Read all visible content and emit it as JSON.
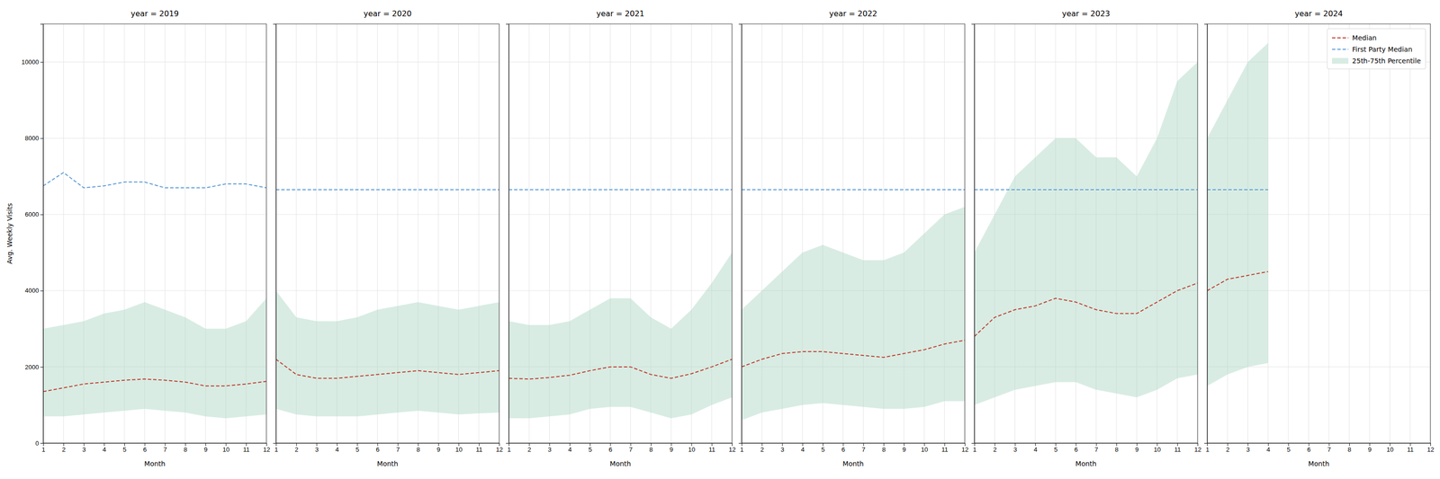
{
  "chart_data": [
    {
      "type": "line",
      "title": "year = 2019",
      "x_label": "Month",
      "y_label": "Avg. Weekly Visits",
      "x": [
        1,
        2,
        3,
        4,
        5,
        6,
        7,
        8,
        9,
        10,
        11,
        12
      ],
      "xlim": [
        1,
        12
      ],
      "xticks": [
        1,
        2,
        3,
        4,
        5,
        6,
        7,
        8,
        9,
        10,
        11,
        12
      ],
      "ylim": [
        0,
        11000
      ],
      "yticks": [
        0,
        2000,
        4000,
        6000,
        8000,
        10000
      ],
      "grid": true,
      "series": [
        {
          "name": "Median",
          "color": "#c0392b",
          "line_style": "dashed",
          "values": [
            1350,
            1450,
            1550,
            1600,
            1650,
            1680,
            1650,
            1600,
            1500,
            1500,
            1550,
            1620
          ]
        },
        {
          "name": "First Party Median",
          "color": "#5b9bd5",
          "line_style": "dashed",
          "values": [
            6750,
            7100,
            6700,
            6750,
            6850,
            6850,
            6700,
            6700,
            6700,
            6800,
            6800,
            6700
          ]
        },
        {
          "name": "25th-75th Percentile",
          "type": "band",
          "color": "#a8d5c2",
          "low": [
            700,
            700,
            750,
            800,
            850,
            900,
            850,
            800,
            700,
            650,
            700,
            750
          ],
          "high": [
            3000,
            3100,
            3200,
            3400,
            3500,
            3700,
            3500,
            3300,
            3000,
            3000,
            3200,
            3800
          ]
        }
      ]
    },
    {
      "type": "line",
      "title": "year = 2020",
      "x_label": "Month",
      "x": [
        1,
        2,
        3,
        4,
        5,
        6,
        7,
        8,
        9,
        10,
        11,
        12
      ],
      "xlim": [
        1,
        12
      ],
      "xticks": [
        1,
        2,
        3,
        4,
        5,
        6,
        7,
        8,
        9,
        10,
        11,
        12
      ],
      "ylim": [
        0,
        11000
      ],
      "yticks": [
        0,
        2000,
        4000,
        6000,
        8000,
        10000
      ],
      "grid": true,
      "tick_labels": "x",
      "series": [
        {
          "name": "Median",
          "color": "#c0392b",
          "line_style": "dashed",
          "values": [
            2200,
            1800,
            1700,
            1700,
            1750,
            1800,
            1850,
            1900,
            1850,
            1800,
            1850,
            1900
          ]
        },
        {
          "name": "First Party Median",
          "color": "#5b9bd5",
          "line_style": "dashed",
          "values": [
            6650,
            6650,
            6650,
            6650,
            6650,
            6650,
            6650,
            6650,
            6650,
            6650,
            6650,
            6650
          ]
        },
        {
          "name": "25th-75th Percentile",
          "type": "band",
          "color": "#a8d5c2",
          "low": [
            900,
            750,
            700,
            700,
            700,
            750,
            800,
            850,
            800,
            750,
            780,
            800
          ],
          "high": [
            4000,
            3300,
            3200,
            3200,
            3300,
            3500,
            3600,
            3700,
            3600,
            3500,
            3600,
            3700
          ]
        }
      ]
    },
    {
      "type": "line",
      "title": "year = 2021",
      "x_label": "Month",
      "x": [
        1,
        2,
        3,
        4,
        5,
        6,
        7,
        8,
        9,
        10,
        11,
        12
      ],
      "xlim": [
        1,
        12
      ],
      "xticks": [
        1,
        2,
        3,
        4,
        5,
        6,
        7,
        8,
        9,
        10,
        11,
        12
      ],
      "ylim": [
        0,
        11000
      ],
      "yticks": [
        0,
        2000,
        4000,
        6000,
        8000,
        10000
      ],
      "grid": true,
      "tick_labels": "x",
      "series": [
        {
          "name": "Median",
          "color": "#c0392b",
          "line_style": "dashed",
          "values": [
            1700,
            1680,
            1720,
            1780,
            1900,
            2000,
            2000,
            1800,
            1700,
            1820,
            2000,
            2200
          ]
        },
        {
          "name": "First Party Median",
          "color": "#5b9bd5",
          "line_style": "dashed",
          "values": [
            6650,
            6650,
            6650,
            6650,
            6650,
            6650,
            6650,
            6650,
            6650,
            6650,
            6650,
            6650
          ]
        },
        {
          "name": "25th-75th Percentile",
          "type": "band",
          "color": "#a8d5c2",
          "low": [
            650,
            650,
            700,
            750,
            900,
            950,
            950,
            800,
            650,
            750,
            1000,
            1200
          ],
          "high": [
            3200,
            3100,
            3100,
            3200,
            3500,
            3800,
            3800,
            3300,
            3000,
            3500,
            4200,
            5000
          ]
        }
      ]
    },
    {
      "type": "line",
      "title": "year = 2022",
      "x_label": "Month",
      "x": [
        1,
        2,
        3,
        4,
        5,
        6,
        7,
        8,
        9,
        10,
        11,
        12
      ],
      "xlim": [
        1,
        12
      ],
      "xticks": [
        1,
        2,
        3,
        4,
        5,
        6,
        7,
        8,
        9,
        10,
        11,
        12
      ],
      "ylim": [
        0,
        11000
      ],
      "yticks": [
        0,
        2000,
        4000,
        6000,
        8000,
        10000
      ],
      "grid": true,
      "tick_labels": "x",
      "series": [
        {
          "name": "Median",
          "color": "#c0392b",
          "line_style": "dashed",
          "values": [
            2000,
            2200,
            2350,
            2400,
            2400,
            2350,
            2300,
            2250,
            2350,
            2450,
            2600,
            2700
          ]
        },
        {
          "name": "First Party Median",
          "color": "#5b9bd5",
          "line_style": "dashed",
          "values": [
            6650,
            6650,
            6650,
            6650,
            6650,
            6650,
            6650,
            6650,
            6650,
            6650,
            6650,
            6650
          ]
        },
        {
          "name": "25th-75th Percentile",
          "type": "band",
          "color": "#a8d5c2",
          "low": [
            600,
            800,
            900,
            1000,
            1050,
            1000,
            950,
            900,
            900,
            950,
            1100,
            1100
          ],
          "high": [
            3500,
            4000,
            4500,
            5000,
            5200,
            5000,
            4800,
            4800,
            5000,
            5500,
            6000,
            6200
          ]
        }
      ]
    },
    {
      "type": "line",
      "title": "year = 2023",
      "x_label": "Month",
      "x": [
        1,
        2,
        3,
        4,
        5,
        6,
        7,
        8,
        9,
        10,
        11,
        12
      ],
      "xlim": [
        1,
        12
      ],
      "xticks": [
        1,
        2,
        3,
        4,
        5,
        6,
        7,
        8,
        9,
        10,
        11,
        12
      ],
      "ylim": [
        0,
        11000
      ],
      "yticks": [
        0,
        2000,
        4000,
        6000,
        8000,
        10000
      ],
      "grid": true,
      "tick_labels": "x",
      "series": [
        {
          "name": "Median",
          "color": "#c0392b",
          "line_style": "dashed",
          "values": [
            2800,
            3300,
            3500,
            3600,
            3800,
            3700,
            3500,
            3400,
            3400,
            3700,
            4000,
            4200
          ]
        },
        {
          "name": "First Party Median",
          "color": "#5b9bd5",
          "line_style": "dashed",
          "values": [
            6650,
            6650,
            6650,
            6650,
            6650,
            6650,
            6650,
            6650,
            6650,
            6650,
            6650,
            6650
          ]
        },
        {
          "name": "25th-75th Percentile",
          "type": "band",
          "color": "#a8d5c2",
          "low": [
            1000,
            1200,
            1400,
            1500,
            1600,
            1600,
            1400,
            1300,
            1200,
            1400,
            1700,
            1800
          ],
          "high": [
            5000,
            6000,
            7000,
            7500,
            8000,
            8000,
            7500,
            7500,
            7000,
            8000,
            9500,
            10000
          ]
        }
      ]
    },
    {
      "type": "line",
      "title": "year = 2024",
      "x_label": "Month",
      "x": [
        1,
        2,
        3,
        4
      ],
      "xlim": [
        1,
        12
      ],
      "xticks": [
        1,
        2,
        3,
        4,
        5,
        6,
        7,
        8,
        9,
        10,
        11,
        12
      ],
      "ylim": [
        0,
        11000
      ],
      "yticks": [
        0,
        2000,
        4000,
        6000,
        8000,
        10000
      ],
      "grid": true,
      "tick_labels": "x",
      "legend": "upper right",
      "series": [
        {
          "name": "Median",
          "color": "#c0392b",
          "line_style": "dashed",
          "values": [
            4000,
            4300,
            4400,
            4500
          ]
        },
        {
          "name": "First Party Median",
          "color": "#5b9bd5",
          "line_style": "dashed",
          "values": [
            6650,
            6650,
            6650,
            6650
          ]
        },
        {
          "name": "25th-75th Percentile",
          "type": "band",
          "color": "#a8d5c2",
          "low": [
            1500,
            1800,
            2000,
            2100
          ],
          "high": [
            8000,
            9000,
            10000,
            10500
          ]
        }
      ]
    }
  ]
}
